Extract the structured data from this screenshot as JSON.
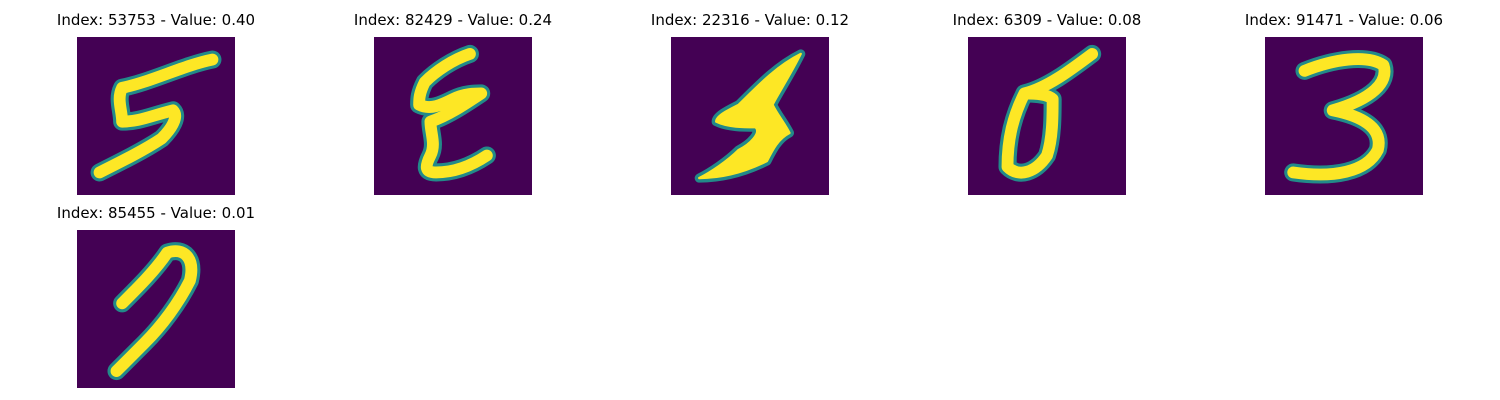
{
  "colors": {
    "background": "#440154",
    "low": "#31688e",
    "mid": "#21918c",
    "high": "#fde725"
  },
  "items": [
    {
      "title": "Index: 53753 - Value: 0.40",
      "digit": "5"
    },
    {
      "title": "Index: 82429 - Value: 0.24",
      "digit": "8"
    },
    {
      "title": "Index: 22316 - Value: 0.12",
      "digit": "5"
    },
    {
      "title": "Index: 6309 - Value: 0.08",
      "digit": "0"
    },
    {
      "title": "Index: 91471 - Value: 0.06",
      "digit": "3"
    },
    {
      "title": "Index: 85455 - Value: 0.01",
      "digit": "7"
    }
  ]
}
